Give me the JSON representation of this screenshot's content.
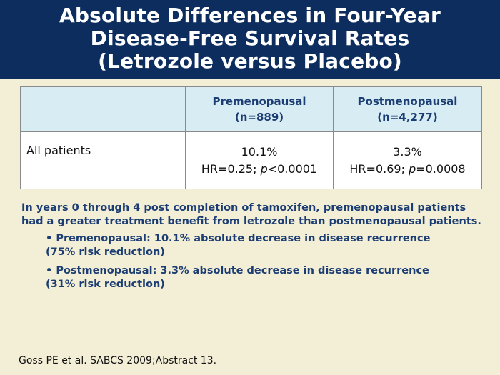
{
  "title": {
    "line1": "Absolute Differences in Four-Year",
    "line2": "Disease-Free Survival Rates",
    "line3": "(Letrozole versus Placebo)"
  },
  "table": {
    "columns": [
      {
        "name": "",
        "n": ""
      },
      {
        "name": "Premenopausal",
        "n": "(n=889)"
      },
      {
        "name": "Postmenopausal",
        "n": "(n=4,277)"
      }
    ],
    "rows": [
      {
        "label": "All patients",
        "premenopausal": {
          "pct": "10.1%",
          "hr": "HR=0.25;",
          "p_label": "p",
          "p_value": "<0.0001"
        },
        "postmenopausal": {
          "pct": "3.3%",
          "hr": "HR=0.69;",
          "p_label": "p",
          "p_value": "=0.0008"
        }
      }
    ]
  },
  "summary": {
    "line1": "In years 0 through 4 post completion of tamoxifen, premenopausal patients",
    "line2": "had a greater treatment benefit from letrozole than postmenopausal patients."
  },
  "bullets": [
    {
      "line1": "• Premenopausal: 10.1% absolute decrease in disease recurrence",
      "line2": "(75% risk reduction)"
    },
    {
      "line1": "• Postmenopausal: 3.3% absolute decrease in disease recurrence",
      "line2": "(31% risk reduction)"
    }
  ],
  "citation": "Goss PE et al. SABCS 2009;Abstract 13.",
  "colors": {
    "header_bg": "#0c2d5e",
    "page_bg": "#f3eed6",
    "table_head_bg": "#d8ecf3",
    "accent_text": "#1b3d73"
  }
}
